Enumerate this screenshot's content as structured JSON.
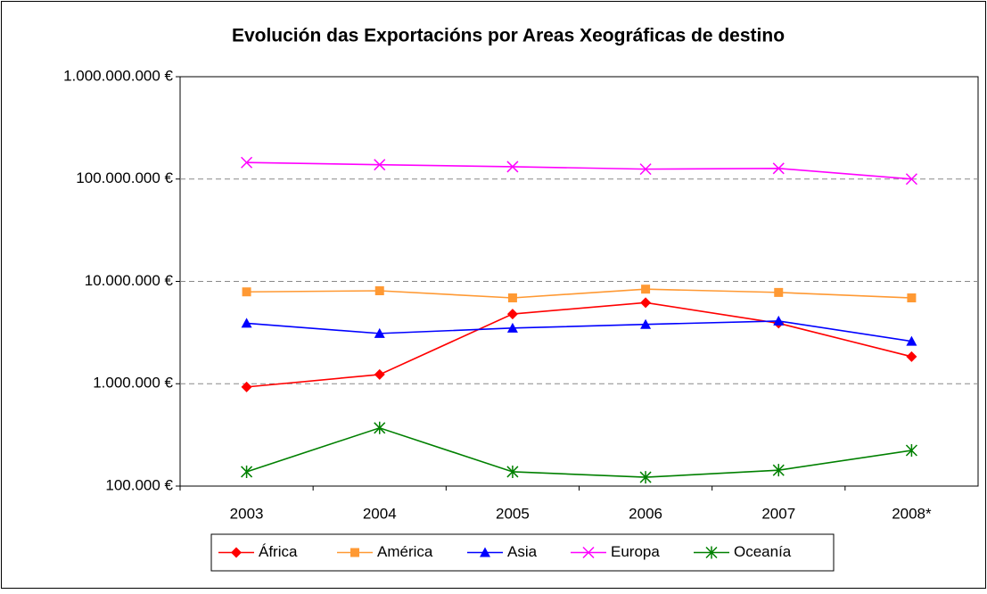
{
  "chart_data": {
    "type": "line",
    "title": "Evolución das Exportacións por Areas Xeográficas de destino",
    "categories": [
      "2003",
      "2004",
      "2005",
      "2006",
      "2007",
      "2008*"
    ],
    "yscale": "log",
    "ylim": [
      100000,
      1000000000
    ],
    "yticks": [
      {
        "value": 100000,
        "label": "100.000 €"
      },
      {
        "value": 1000000,
        "label": "1.000.000 €"
      },
      {
        "value": 10000000,
        "label": "10.000.000 €"
      },
      {
        "value": 100000000,
        "label": "100.000.000 €"
      },
      {
        "value": 1000000000,
        "label": "1.000.000.000 €"
      }
    ],
    "grid": true,
    "legend": "bottom",
    "series": [
      {
        "name": "África",
        "color": "#ff0000",
        "marker": "diamond",
        "values": [
          930000,
          1230000,
          4800000,
          6200000,
          3900000,
          1840000
        ]
      },
      {
        "name": "América",
        "color": "#ff9933",
        "marker": "square",
        "values": [
          7900000,
          8100000,
          6900000,
          8400000,
          7800000,
          6900000
        ]
      },
      {
        "name": "Asia",
        "color": "#0000ff",
        "marker": "triangle",
        "values": [
          3900000,
          3100000,
          3500000,
          3800000,
          4100000,
          2600000
        ]
      },
      {
        "name": "Europa",
        "color": "#ff00ff",
        "marker": "x",
        "values": [
          145000000,
          138000000,
          132000000,
          125000000,
          127000000,
          100000000
        ]
      },
      {
        "name": "Oceanía",
        "color": "#008000",
        "marker": "star",
        "values": [
          138000,
          370000,
          138000,
          122000,
          143000,
          223000
        ]
      }
    ]
  }
}
